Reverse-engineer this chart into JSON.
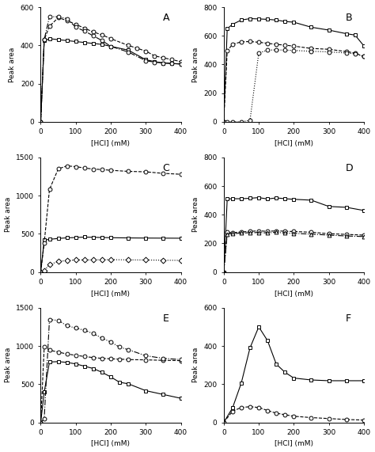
{
  "panels": [
    {
      "label": "A",
      "ylim": [
        0,
        600
      ],
      "yticks": [
        0,
        200,
        400,
        600
      ],
      "series": [
        {
          "x": [
            0,
            10,
            25,
            50,
            75,
            100,
            125,
            150,
            175,
            200,
            250,
            300,
            325,
            350,
            375,
            400
          ],
          "y": [
            0,
            425,
            435,
            430,
            425,
            420,
            415,
            410,
            405,
            395,
            375,
            325,
            315,
            308,
            305,
            302
          ],
          "marker": "s",
          "linestyle": "-"
        },
        {
          "x": [
            0,
            10,
            25,
            50,
            75,
            100,
            125,
            150,
            175,
            200,
            250,
            275,
            300,
            325,
            350,
            375,
            400
          ],
          "y": [
            0,
            430,
            500,
            545,
            530,
            510,
            490,
            470,
            455,
            435,
            400,
            385,
            370,
            345,
            335,
            325,
            315
          ],
          "marker": "o",
          "linestyle": "--"
        },
        {
          "x": [
            0,
            10,
            25,
            50,
            75,
            100,
            125,
            150,
            175,
            200,
            250,
            300,
            325,
            350,
            375,
            400
          ],
          "y": [
            0,
            430,
            550,
            550,
            540,
            495,
            475,
            450,
            425,
            395,
            365,
            320,
            312,
            308,
            305,
            303
          ],
          "marker": "o",
          "linestyle": "-."
        }
      ]
    },
    {
      "label": "B",
      "ylim": [
        0,
        800
      ],
      "yticks": [
        0,
        200,
        400,
        600,
        800
      ],
      "series": [
        {
          "x": [
            0,
            10,
            25,
            50,
            75,
            100,
            125,
            150,
            175,
            200,
            250,
            300,
            350,
            375,
            400
          ],
          "y": [
            0,
            650,
            680,
            710,
            720,
            718,
            715,
            710,
            700,
            695,
            660,
            640,
            615,
            605,
            530
          ],
          "marker": "s",
          "linestyle": "-"
        },
        {
          "x": [
            0,
            10,
            25,
            50,
            75,
            100,
            125,
            150,
            175,
            200,
            250,
            300,
            350,
            375,
            400
          ],
          "y": [
            0,
            495,
            540,
            558,
            560,
            555,
            548,
            540,
            535,
            528,
            512,
            506,
            490,
            480,
            455
          ],
          "marker": "o",
          "linestyle": "--"
        },
        {
          "x": [
            0,
            10,
            25,
            50,
            75,
            100,
            125,
            150,
            175,
            200,
            250,
            300,
            350,
            375,
            400
          ],
          "y": [
            0,
            0,
            0,
            0,
            10,
            480,
            500,
            502,
            500,
            498,
            492,
            488,
            480,
            475,
            455
          ],
          "marker": "o",
          "linestyle": ":"
        }
      ]
    },
    {
      "label": "C",
      "ylim": [
        0,
        1500
      ],
      "yticks": [
        0,
        500,
        1000,
        1500
      ],
      "series": [
        {
          "x": [
            0,
            10,
            25,
            50,
            75,
            100,
            125,
            150,
            175,
            200,
            250,
            300,
            350,
            400
          ],
          "y": [
            0,
            418,
            428,
            440,
            448,
            452,
            458,
            455,
            452,
            450,
            447,
            445,
            444,
            443
          ],
          "marker": "s",
          "linestyle": "-"
        },
        {
          "x": [
            0,
            10,
            25,
            50,
            75,
            100,
            125,
            150,
            175,
            200,
            250,
            300,
            350,
            400
          ],
          "y": [
            0,
            380,
            1080,
            1350,
            1390,
            1380,
            1362,
            1348,
            1342,
            1332,
            1318,
            1312,
            1292,
            1280
          ],
          "marker": "o",
          "linestyle": "--"
        },
        {
          "x": [
            0,
            10,
            25,
            50,
            75,
            100,
            125,
            150,
            175,
            200,
            250,
            300,
            350,
            400
          ],
          "y": [
            0,
            18,
            98,
            138,
            152,
            158,
            159,
            160,
            162,
            162,
            160,
            158,
            155,
            153
          ],
          "marker": "D",
          "linestyle": ":"
        }
      ]
    },
    {
      "label": "D",
      "ylim": [
        0,
        800
      ],
      "yticks": [
        0,
        200,
        400,
        600,
        800
      ],
      "series": [
        {
          "x": [
            0,
            10,
            25,
            50,
            75,
            100,
            125,
            150,
            175,
            200,
            250,
            300,
            350,
            400
          ],
          "y": [
            0,
            510,
            512,
            512,
            515,
            520,
            510,
            518,
            512,
            508,
            502,
            458,
            452,
            430
          ],
          "marker": "s",
          "linestyle": "-"
        },
        {
          "x": [
            0,
            10,
            25,
            50,
            75,
            100,
            125,
            150,
            175,
            200,
            250,
            300,
            350,
            400
          ],
          "y": [
            0,
            278,
            275,
            280,
            284,
            288,
            284,
            288,
            285,
            283,
            278,
            268,
            263,
            258
          ],
          "marker": "o",
          "linestyle": "--"
        },
        {
          "x": [
            0,
            10,
            25,
            50,
            75,
            100,
            125,
            150,
            175,
            200,
            250,
            300,
            350,
            400
          ],
          "y": [
            0,
            265,
            268,
            272,
            275,
            276,
            273,
            278,
            272,
            270,
            265,
            258,
            252,
            248
          ],
          "marker": "^",
          "linestyle": "-."
        }
      ]
    },
    {
      "label": "E",
      "ylim": [
        0,
        1500
      ],
      "yticks": [
        0,
        500,
        1000,
        1500
      ],
      "series": [
        {
          "x": [
            0,
            10,
            25,
            50,
            75,
            100,
            125,
            150,
            175,
            200,
            225,
            250,
            300,
            350,
            400
          ],
          "y": [
            0,
            395,
            790,
            795,
            785,
            765,
            735,
            705,
            655,
            595,
            525,
            505,
            415,
            365,
            315
          ],
          "marker": "s",
          "linestyle": "-"
        },
        {
          "x": [
            0,
            10,
            25,
            50,
            75,
            100,
            125,
            150,
            175,
            200,
            225,
            250,
            300,
            350,
            400
          ],
          "y": [
            0,
            985,
            945,
            920,
            895,
            878,
            862,
            848,
            838,
            832,
            828,
            822,
            818,
            812,
            808
          ],
          "marker": "o",
          "linestyle": "--"
        },
        {
          "x": [
            0,
            10,
            25,
            50,
            75,
            100,
            125,
            150,
            175,
            200,
            225,
            250,
            300,
            350,
            400
          ],
          "y": [
            0,
            45,
            1345,
            1335,
            1265,
            1235,
            1205,
            1162,
            1102,
            1052,
            985,
            952,
            872,
            838,
            822
          ],
          "marker": "o",
          "linestyle": "-."
        }
      ]
    },
    {
      "label": "F",
      "ylim": [
        0,
        600
      ],
      "yticks": [
        0,
        200,
        400,
        600
      ],
      "series": [
        {
          "x": [
            0,
            25,
            50,
            75,
            100,
            125,
            150,
            175,
            200,
            250,
            300,
            350,
            400
          ],
          "y": [
            0,
            75,
            205,
            390,
            500,
            428,
            305,
            262,
            232,
            222,
            218,
            218,
            218
          ],
          "marker": "s",
          "linestyle": "-"
        },
        {
          "x": [
            0,
            25,
            50,
            75,
            100,
            125,
            150,
            175,
            200,
            250,
            300,
            350,
            400
          ],
          "y": [
            0,
            58,
            78,
            82,
            78,
            62,
            48,
            40,
            32,
            25,
            20,
            15,
            12
          ],
          "marker": "o",
          "linestyle": "--"
        }
      ]
    }
  ],
  "xlabel": "[HCl] (mM)",
  "ylabel": "Peak area"
}
